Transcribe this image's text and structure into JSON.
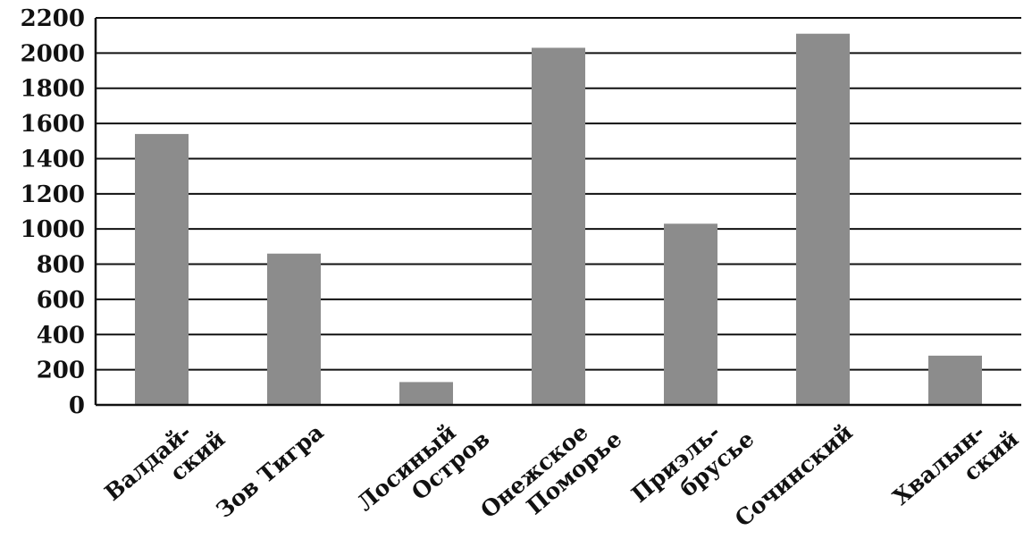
{
  "chart_data": {
    "type": "bar",
    "title": "",
    "xlabel": "",
    "ylabel": "",
    "ylim": [
      0,
      2200
    ],
    "yticks": [
      0,
      200,
      400,
      600,
      800,
      1000,
      1200,
      1400,
      1600,
      1800,
      2000,
      2200
    ],
    "grid": true,
    "bar_color": "#8c8c8c",
    "categories": [
      [
        "Валдай-",
        "ский"
      ],
      [
        "Зов Тигра"
      ],
      [
        "Лосиный",
        "Остров"
      ],
      [
        "Онежское",
        "Поморье"
      ],
      [
        "Приэль-",
        "брусье"
      ],
      [
        "Сочинский"
      ],
      [
        "Хвалын-",
        "ский"
      ]
    ],
    "values": [
      1540,
      860,
      130,
      2030,
      1030,
      2110,
      280
    ]
  }
}
